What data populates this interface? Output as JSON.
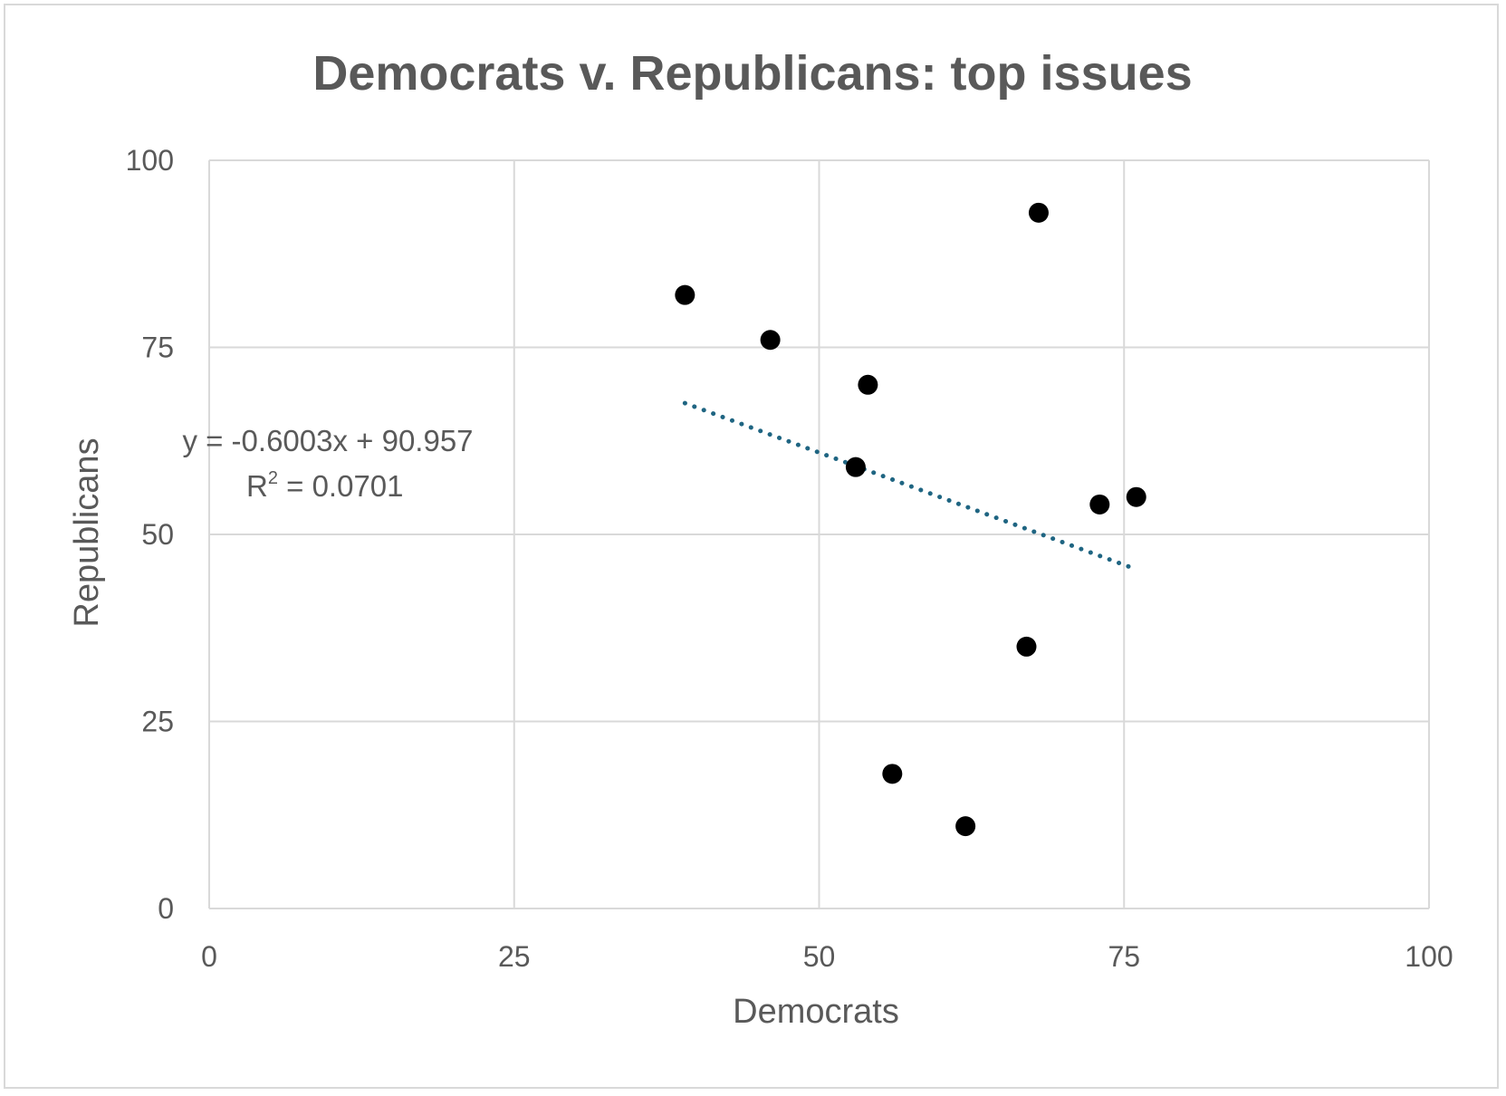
{
  "chart_data": {
    "type": "scatter",
    "title": "Democrats v. Republicans: top issues",
    "xlabel": "Democrats",
    "ylabel": "Republicans",
    "xlim": [
      0,
      100
    ],
    "ylim": [
      0,
      100
    ],
    "xticks": [
      "0",
      "25",
      "50",
      "75",
      "100"
    ],
    "yticks": [
      "0",
      "25",
      "50",
      "75",
      "100"
    ],
    "grid": true,
    "legend": "none",
    "series": [
      {
        "points": [
          {
            "x": 39,
            "y": 82
          },
          {
            "x": 46,
            "y": 76
          },
          {
            "x": 54,
            "y": 70
          },
          {
            "x": 53,
            "y": 59
          },
          {
            "x": 68,
            "y": 93
          },
          {
            "x": 73,
            "y": 54
          },
          {
            "x": 76,
            "y": 55
          },
          {
            "x": 67,
            "y": 35
          },
          {
            "x": 56,
            "y": 18
          },
          {
            "x": 62,
            "y": 11
          }
        ],
        "color": "#000000"
      }
    ],
    "trendline": {
      "type": "linear",
      "slope": -0.6003,
      "intercept": 90.957,
      "x_range": [
        39,
        76
      ],
      "color": "#1f6582",
      "style": "dotted",
      "equation_label": "y = -0.6003x + 90.957",
      "r2_prefix": "R",
      "r2_superscript": "2",
      "r2_value": " = 0.0701"
    },
    "colors": {
      "grid": "#d9d9d9",
      "text": "#595959",
      "frame": "#d9d9d9"
    }
  }
}
